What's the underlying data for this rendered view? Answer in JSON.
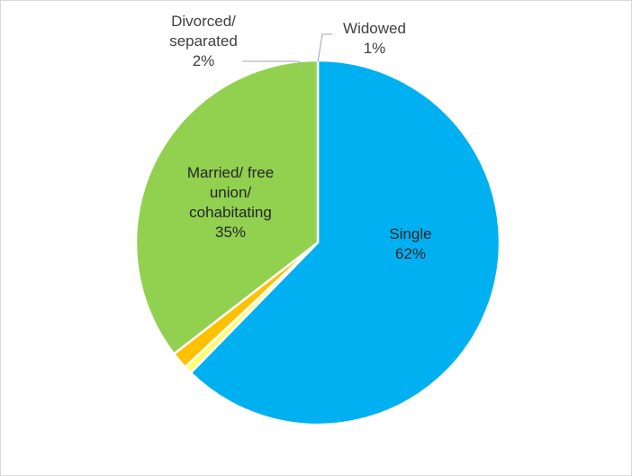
{
  "chart_data": {
    "type": "pie",
    "title": "",
    "slices": [
      {
        "label": "Single",
        "percent_label": "62%",
        "value": 62,
        "color": "#00B0F0"
      },
      {
        "label": "Widowed",
        "percent_label": "1%",
        "value": 0.7,
        "color": "#FFFF66"
      },
      {
        "label": "Divorced/ separated",
        "percent_label": "2%",
        "value": 1.5,
        "color": "#FFC000"
      },
      {
        "label": "Married/ free union/ cohabitating",
        "percent_label": "35%",
        "value": 35.3,
        "color": "#92D050"
      }
    ],
    "legend": "none",
    "data_labels": {
      "single": "Single\n62%",
      "married": "Married/ free\nunion/\ncohabitating\n35%",
      "divorced": "Divorced/\nseparated\n2%",
      "widowed": "Widowed\n1%"
    }
  }
}
